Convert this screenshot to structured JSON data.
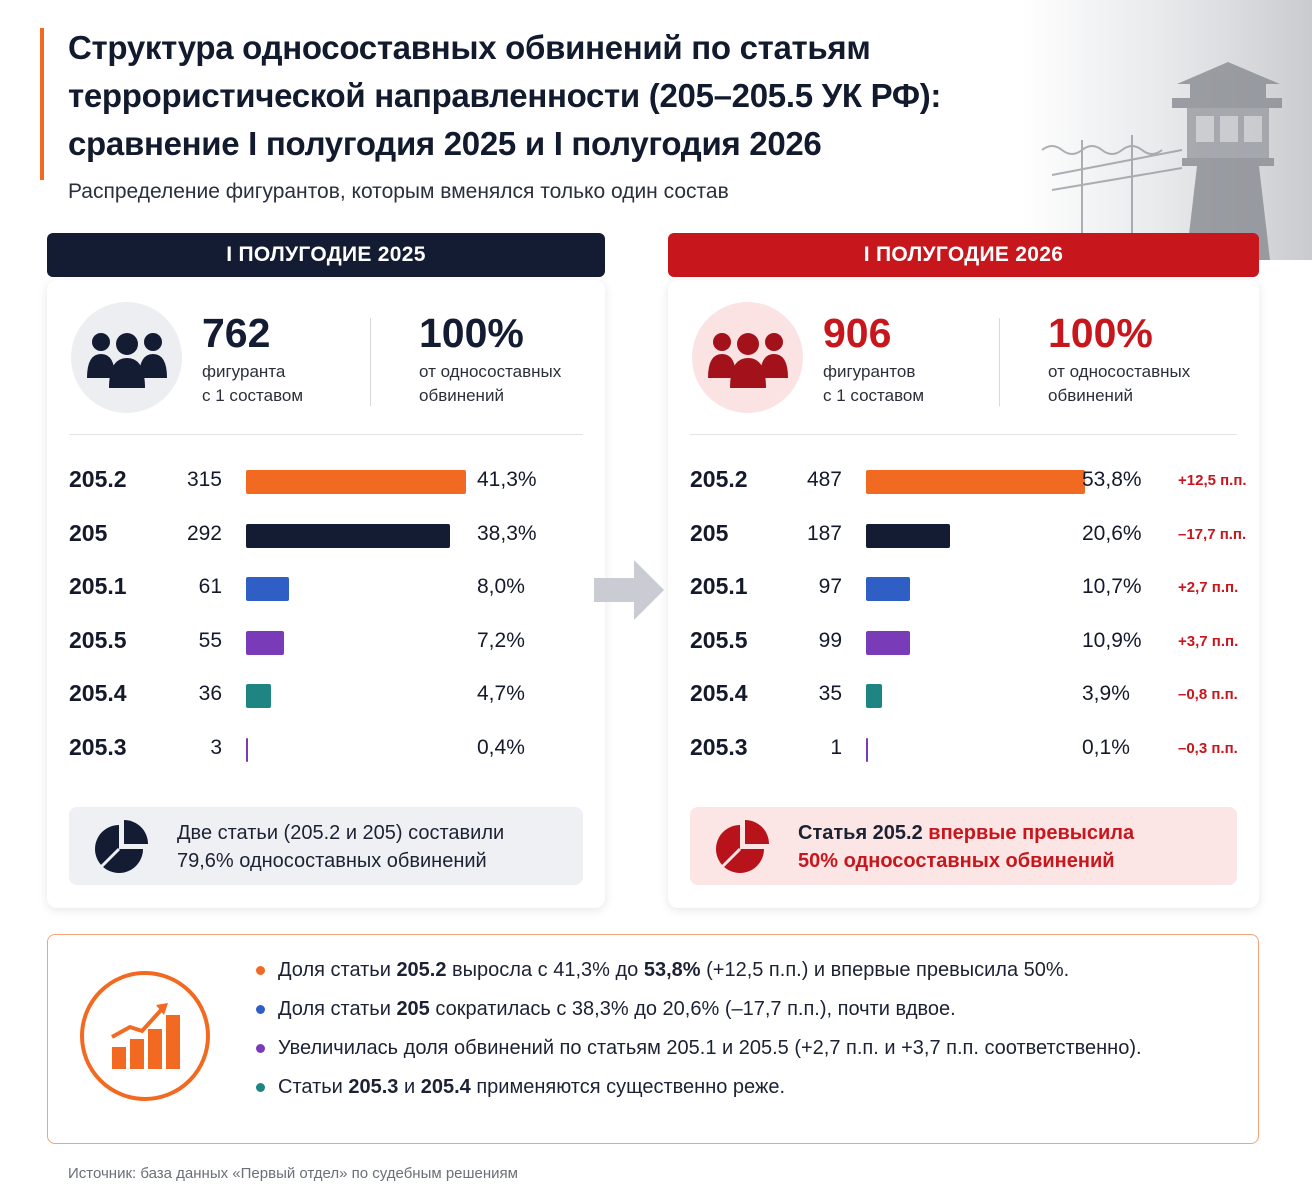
{
  "title": "Структура односоставных обвинений по статьям террористической направленности (205–205.5 УК РФ): сравнение I полугодия 2025 и I полугодия 2026",
  "subtitle": "Распределение фигурантов, которым вменялся только один состав",
  "colors": {
    "accent": "#f26a21",
    "navy": "#141c33",
    "red": "#c8161d",
    "bar_205_2": "#f26a21",
    "bar_205": "#141c33",
    "bar_205_1": "#2f5fc4",
    "bar_205_5": "#7a3bb8",
    "bar_205_4": "#1f8582",
    "bar_205_3": "#7a3bb8"
  },
  "left": {
    "header": "I ПОЛУГОДИЕ 2025",
    "total": "762",
    "total_label_1": "фигуранта",
    "total_label_2": "с 1 составом",
    "share": "100%",
    "share_label_1": "от односоставных",
    "share_label_2": "обвинений",
    "note_1": "Две статьи (205.2 и 205) составили",
    "note_2": "79,6% односоставных обвинений"
  },
  "right": {
    "header": "I ПОЛУГОДИЕ 2026",
    "total": "906",
    "total_label_1": "фигурантов",
    "total_label_2": "с 1 составом",
    "share": "100%",
    "share_label_1": "от односоставных",
    "share_label_2": "обвинений",
    "note_a": "Статья 205.2 ",
    "note_b": "впервые ",
    "note_c": "превысила",
    "note_d": "50% односоставных обвинений"
  },
  "chart_data": [
    {
      "type": "bar",
      "title": "I ПОЛУГОДИЕ 2025",
      "categories": [
        "205.2",
        "205",
        "205.1",
        "205.5",
        "205.4",
        "205.3"
      ],
      "values": [
        315,
        292,
        61,
        55,
        36,
        3
      ],
      "labels": [
        "41,3%",
        "38,3%",
        "8,0%",
        "7,2%",
        "4,7%",
        "0,4%"
      ],
      "percents": [
        41.3,
        38.3,
        8.0,
        7.2,
        4.7,
        0.4
      ]
    },
    {
      "type": "bar",
      "title": "I ПОЛУГОДИЕ 2026",
      "categories": [
        "205.2",
        "205",
        "205.1",
        "205.5",
        "205.4",
        "205.3"
      ],
      "values": [
        487,
        187,
        97,
        99,
        35,
        1
      ],
      "labels": [
        "53,8%",
        "20,6%",
        "10,7%",
        "10,9%",
        "3,9%",
        "0,1%"
      ],
      "percents": [
        53.8,
        20.6,
        10.7,
        10.9,
        3.9,
        0.1
      ],
      "deltas": [
        "+12,5 п.п.",
        "–17,7 п.п.",
        "+2,7 п.п.",
        "+3,7 п.п.",
        "–0,8 п.п.",
        "–0,3 п.п."
      ]
    }
  ],
  "summary": [
    {
      "color": "#f26a21",
      "parts": [
        "Доля статьи ",
        "205.2",
        " выросла с 41,3% до ",
        "53,8%",
        " (+12,5 п.п.) и впервые превысила 50%."
      ]
    },
    {
      "color": "#2f5fc4",
      "parts": [
        "Доля статьи ",
        "205",
        " сократилась с 38,3% до 20,6% (–17,7 п.п.), почти вдвое.",
        "",
        ""
      ]
    },
    {
      "color": "#7a3bb8",
      "parts": [
        "Увеличилась доля обвинений по статьям 205.1 и 205.5 (+2,7 п.п. и +3,7 п.п. соответственно).",
        "",
        "",
        "",
        ""
      ]
    },
    {
      "color": "#1f8582",
      "parts": [
        "Статьи ",
        "205.3",
        " и ",
        "205.4",
        " применяются существенно реже."
      ]
    }
  ],
  "source": "Источник: база данных «Первый отдел» по судебным решениям"
}
